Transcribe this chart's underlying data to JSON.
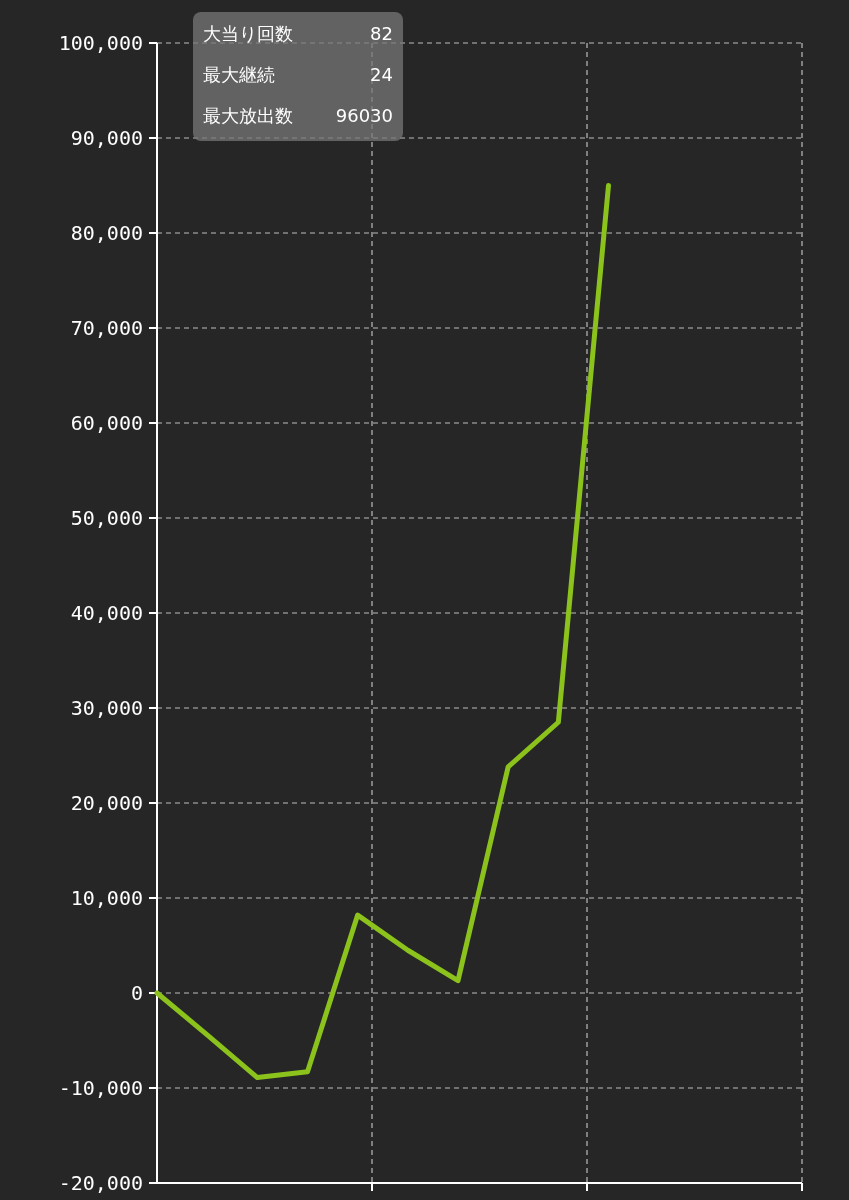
{
  "chart_data": {
    "type": "line",
    "categories": [
      null,
      null,
      null,
      null,
      null,
      null,
      null,
      null,
      null,
      null
    ],
    "series": [
      {
        "color": "#8bc21c",
        "values": [
          0,
          -4400,
          -8900,
          -8300,
          8200,
          4500,
          1300,
          23800,
          28500,
          85000
        ]
      }
    ],
    "ylim": [
      -20000,
      100000
    ],
    "yticks": [
      {
        "value": -20000,
        "label": "-20,000"
      },
      {
        "value": -10000,
        "label": "-10,000"
      },
      {
        "value": 0,
        "label": "0"
      },
      {
        "value": 10000,
        "label": "10,000"
      },
      {
        "value": 20000,
        "label": "20,000"
      },
      {
        "value": 30000,
        "label": "30,000"
      },
      {
        "value": 40000,
        "label": "40,000"
      },
      {
        "value": 50000,
        "label": "50,000"
      },
      {
        "value": 60000,
        "label": "60,000"
      },
      {
        "value": 70000,
        "label": "70,000"
      },
      {
        "value": 80000,
        "label": "80,000"
      },
      {
        "value": 90000,
        "label": "90,000"
      },
      {
        "value": 100000,
        "label": "100,000"
      }
    ],
    "tick_labels": "y",
    "grid": true,
    "marker": "none",
    "line_style": "solid",
    "annotations": [
      "大当り回数",
      "82",
      "最大継続",
      "24",
      "最大放出数",
      "96030"
    ]
  }
}
